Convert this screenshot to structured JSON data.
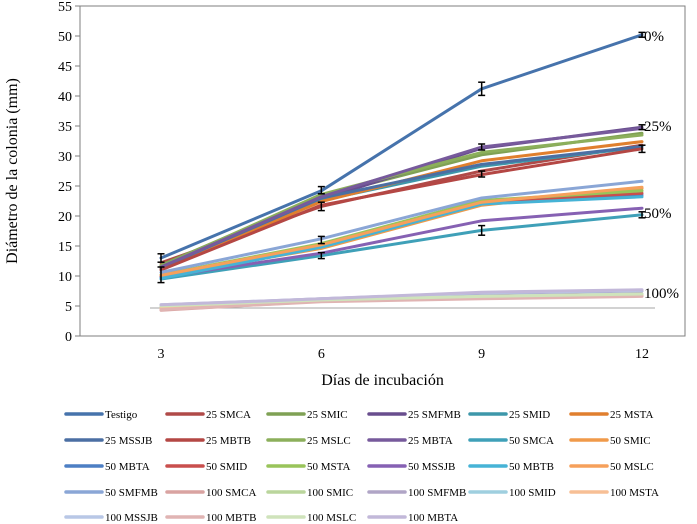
{
  "chart_data": {
    "type": "line",
    "title": "",
    "xlabel": "Días de incubación",
    "ylabel": "Diámetro de la colonia (mm)",
    "x": [
      3,
      6,
      9,
      12
    ],
    "x_tick_labels": [
      "3",
      "6",
      "9",
      "12"
    ],
    "ylim": [
      0,
      55
    ],
    "y_ticks": [
      0,
      5,
      10,
      15,
      20,
      25,
      30,
      35,
      40,
      45,
      50,
      55
    ],
    "y_tick_labels": [
      "0",
      "5",
      "10",
      "15",
      "20",
      "25",
      "30",
      "35",
      "40",
      "45",
      "50",
      "55"
    ],
    "grid": false,
    "legend_position": "bottom",
    "annotations": [
      {
        "text": "0%",
        "x": 12,
        "y": 50
      },
      {
        "text": "25%",
        "x": 12,
        "y": 35
      },
      {
        "text": "50%",
        "x": 12,
        "y": 20.5
      },
      {
        "text": "100%",
        "x": 12,
        "y": 7.2
      }
    ],
    "error_bars": [
      {
        "x": 3,
        "y": 13,
        "err": 0.7
      },
      {
        "x": 3,
        "y": 10.2,
        "err": 1.3
      },
      {
        "x": 6,
        "y": 24.3,
        "err": 0.6
      },
      {
        "x": 6,
        "y": 21.6,
        "err": 0.7
      },
      {
        "x": 6,
        "y": 16,
        "err": 0.6
      },
      {
        "x": 6,
        "y": 13.4,
        "err": 0.5
      },
      {
        "x": 9,
        "y": 41.2,
        "err": 1.1
      },
      {
        "x": 9,
        "y": 31.5,
        "err": 0.5
      },
      {
        "x": 9,
        "y": 27,
        "err": 0.5
      },
      {
        "x": 9,
        "y": 17.6,
        "err": 0.8
      },
      {
        "x": 12,
        "y": 50.2,
        "err": 0.4
      },
      {
        "x": 12,
        "y": 34.8,
        "err": 0.4
      },
      {
        "x": 12,
        "y": 31.2,
        "err": 0.6
      },
      {
        "x": 12,
        "y": 20.2,
        "err": 0.5
      }
    ],
    "series": [
      {
        "name": "Testigo",
        "color": "#4673ac",
        "values": [
          13,
          24.2,
          41.2,
          50.2
        ]
      },
      {
        "name": "25 SMCA",
        "color": "#b04a48",
        "values": [
          12.2,
          21.6,
          27.5,
          31.8
        ]
      },
      {
        "name": "25 SMIC",
        "color": "#7fa154",
        "values": [
          11.8,
          23.3,
          30.2,
          33.8
        ]
      },
      {
        "name": "25 SMFMB",
        "color": "#694e8e",
        "values": [
          11.5,
          22.8,
          31.3,
          34.8
        ]
      },
      {
        "name": "25 SMID",
        "color": "#3d97aa",
        "values": [
          11.2,
          22.6,
          28.3,
          31.5
        ]
      },
      {
        "name": "25 MSTA",
        "color": "#e07f2e",
        "values": [
          11.3,
          22.4,
          29.2,
          32.4
        ]
      },
      {
        "name": "25 MSSJB",
        "color": "#4b6fa3",
        "values": [
          11.4,
          23.0,
          28.6,
          31.6
        ]
      },
      {
        "name": "25 MBTB",
        "color": "#b44744",
        "values": [
          11.0,
          21.8,
          26.9,
          31.2
        ]
      },
      {
        "name": "25 MSLC",
        "color": "#8caf5b",
        "values": [
          11.6,
          23.6,
          30.6,
          33.5
        ]
      },
      {
        "name": "25 MBTA",
        "color": "#775a9c",
        "values": [
          11.5,
          23.2,
          31.5,
          34.6
        ]
      },
      {
        "name": "50 SMCA",
        "color": "#3fa0b8",
        "values": [
          9.5,
          13.4,
          17.6,
          20.2
        ]
      },
      {
        "name": "50 SMIC",
        "color": "#f09a4a",
        "values": [
          10.0,
          14.6,
          21.8,
          24.6
        ]
      },
      {
        "name": "50 MBTA",
        "color": "#4d7fc4",
        "values": [
          9.8,
          15.2,
          22.5,
          23.5
        ]
      },
      {
        "name": "50 SMID",
        "color": "#c94f4d",
        "values": [
          10.0,
          15.0,
          22.3,
          23.8
        ]
      },
      {
        "name": "50 MSTA",
        "color": "#99c45a",
        "values": [
          10.2,
          15.4,
          22.6,
          24.2
        ]
      },
      {
        "name": "50 MSSJB",
        "color": "#8661b3",
        "values": [
          9.8,
          13.8,
          19.2,
          21.3
        ]
      },
      {
        "name": "50 MBTB",
        "color": "#46b3d6",
        "values": [
          9.6,
          14.8,
          22.0,
          23.2
        ]
      },
      {
        "name": "50 MSLC",
        "color": "#f6a05b",
        "values": [
          10.1,
          15.2,
          22.3,
          24.8
        ]
      },
      {
        "name": "50 SMFMB",
        "color": "#8aa6d6",
        "values": [
          10.6,
          16.2,
          23.0,
          25.8
        ]
      },
      {
        "name": "100 SMCA",
        "color": "#d9a3a1",
        "values": [
          4.3,
          5.8,
          6.3,
          6.7
        ]
      },
      {
        "name": "100 SMIC",
        "color": "#bad59c",
        "values": [
          4.9,
          6.0,
          6.5,
          6.9
        ]
      },
      {
        "name": "100 SMFMB",
        "color": "#b0a5c6",
        "values": [
          5.1,
          6.2,
          7.1,
          7.5
        ]
      },
      {
        "name": "100 SMID",
        "color": "#9fcfdf",
        "values": [
          5.0,
          6.0,
          6.6,
          7.0
        ]
      },
      {
        "name": "100 MSTA",
        "color": "#f7bf95",
        "values": [
          4.6,
          5.8,
          6.4,
          6.8
        ]
      },
      {
        "name": "100 MSSJB",
        "color": "#b8c7e6",
        "values": [
          5.2,
          6.2,
          7.2,
          7.6
        ]
      },
      {
        "name": "100 MBTB",
        "color": "#e0b4b3",
        "values": [
          4.4,
          5.7,
          6.2,
          6.6
        ]
      },
      {
        "name": "100 MSLC",
        "color": "#cfe3bb",
        "values": [
          5.0,
          6.0,
          6.6,
          7.0
        ]
      },
      {
        "name": "100 MBTA",
        "color": "#c2b8d9",
        "values": [
          5.2,
          6.2,
          7.3,
          7.7
        ]
      }
    ]
  }
}
